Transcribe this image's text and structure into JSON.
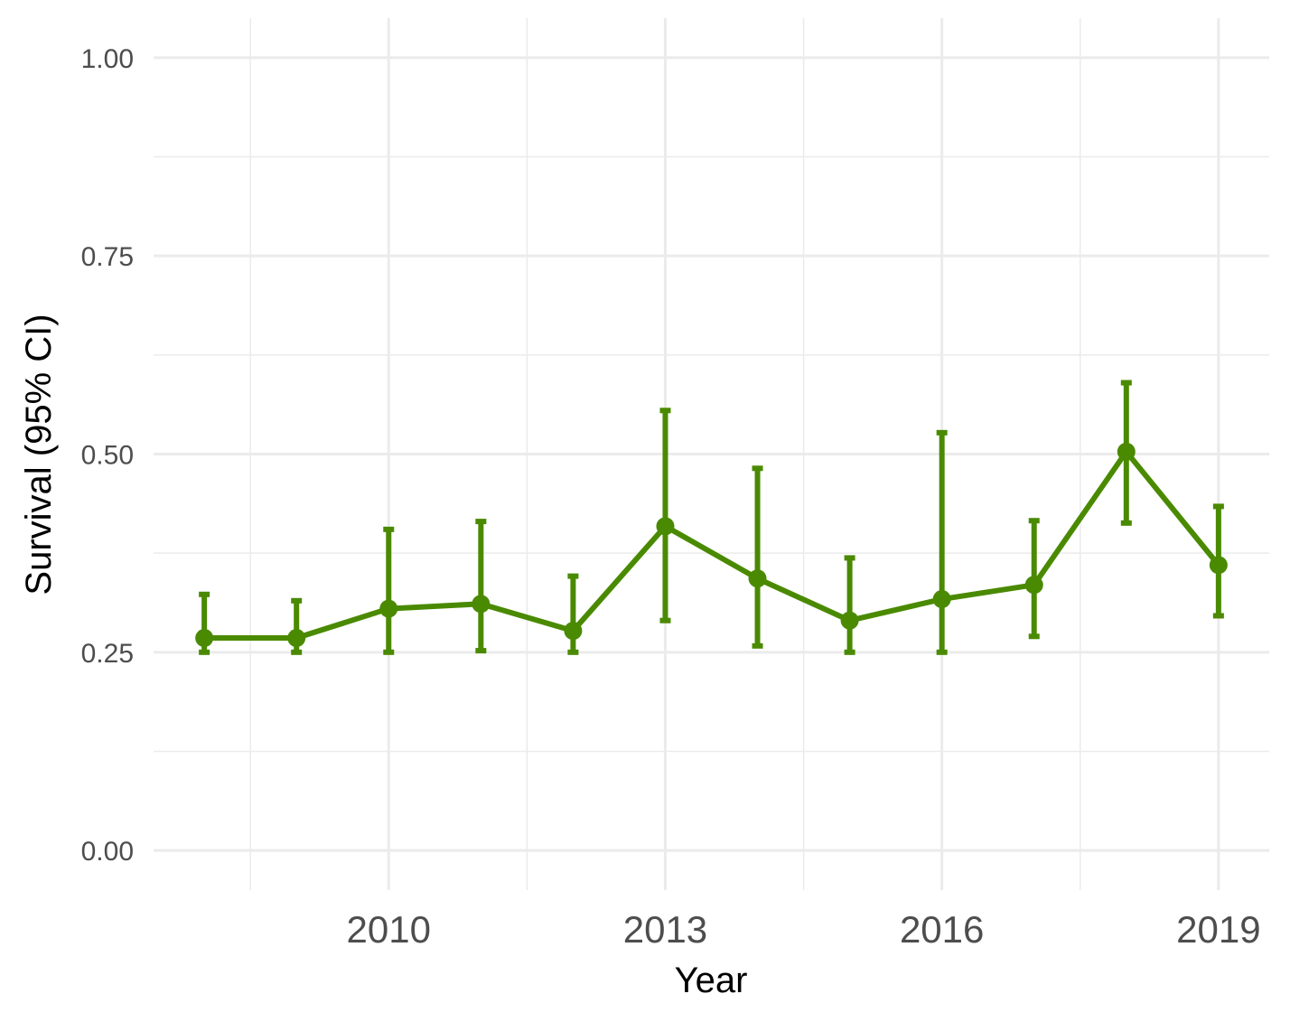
{
  "chart_data": {
    "type": "line",
    "xlabel": "Year",
    "ylabel": "Survival (95% CI)",
    "xlim": [
      2007.45,
      2019.55
    ],
    "ylim": [
      -0.05,
      1.05
    ],
    "x_major_ticks": [
      2010,
      2013,
      2016,
      2019
    ],
    "x_tick_labels": [
      "2010",
      "2013",
      "2016",
      "2019"
    ],
    "y_major_ticks": [
      0.0,
      0.25,
      0.5,
      0.75,
      1.0
    ],
    "y_tick_labels": [
      "0.00",
      "0.25",
      "0.50",
      "0.75",
      "1.00"
    ],
    "grid": true,
    "legend": "none",
    "color": "#4a8a00",
    "series": [
      {
        "x": [
          2008,
          2009,
          2010,
          2011,
          2012,
          2013,
          2014,
          2015,
          2016,
          2017,
          2018,
          2019
        ],
        "y": [
          0.268,
          0.268,
          0.305,
          0.311,
          0.277,
          0.409,
          0.343,
          0.29,
          0.317,
          0.335,
          0.503,
          0.36
        ],
        "lower": [
          0.25,
          0.25,
          0.25,
          0.252,
          0.25,
          0.29,
          0.258,
          0.25,
          0.25,
          0.27,
          0.413,
          0.296
        ],
        "upper": [
          0.323,
          0.315,
          0.405,
          0.415,
          0.346,
          0.555,
          0.482,
          0.369,
          0.527,
          0.416,
          0.59,
          0.434
        ]
      }
    ]
  }
}
